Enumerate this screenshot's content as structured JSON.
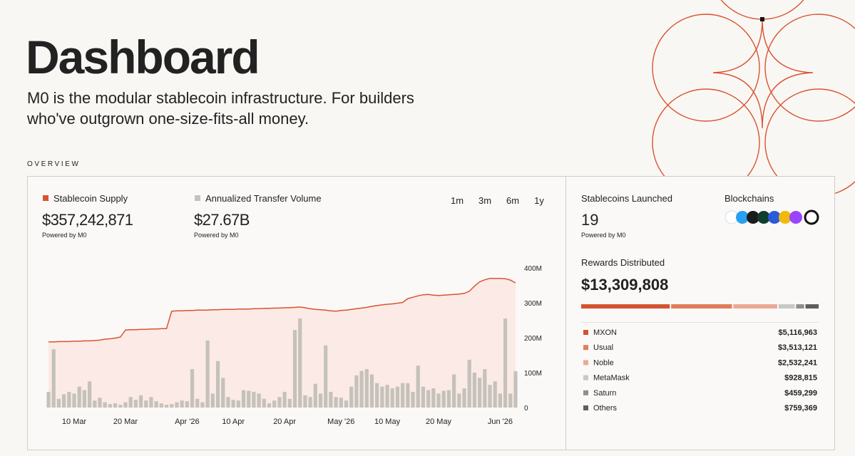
{
  "header": {
    "title": "Dashboard",
    "subtitle_lines": [
      "M0 is the modular stablecoin infrastructure. For builders",
      "who've outgrown one-size-fits-all money."
    ]
  },
  "section_label": "OVERVIEW",
  "metrics": [
    {
      "value": "$357,242,871",
      "note": "Powered by M0"
    },
    {
      "value": "$27.67B",
      "note": "Powered by M0"
    }
  ],
  "ranges": {
    "options": [
      "1m",
      "3m",
      "6m",
      "1y"
    ],
    "active_index": 1,
    "active_color": "#d9532f"
  },
  "right_panel": {
    "launched": {
      "label": "Stablecoins Launched",
      "value": "19",
      "note": "Powered by M0"
    },
    "blockchains": {
      "label": "Blockchains"
    },
    "rewards": {
      "label": "Rewards Distributed",
      "value": "$13,309,808"
    }
  },
  "chart_data": [
    {
      "type": "combo",
      "x": [
        0,
        1,
        2,
        3,
        4,
        5,
        6,
        7,
        8,
        9,
        10,
        11,
        12,
        13,
        14,
        15,
        16,
        17,
        18,
        19,
        20,
        21,
        22,
        23,
        24,
        25,
        26,
        27,
        28,
        29,
        30,
        31,
        32,
        33,
        34,
        35,
        36,
        37,
        38,
        39,
        40,
        41,
        42,
        43,
        44,
        45,
        46,
        47,
        48,
        49,
        50,
        51,
        52,
        53,
        54,
        55,
        56,
        57,
        58,
        59,
        60,
        61,
        62,
        63,
        64,
        65,
        66,
        67,
        68,
        69,
        70,
        71,
        72,
        73,
        74,
        75,
        76,
        77,
        78,
        79,
        80,
        81,
        82,
        83,
        84,
        85,
        86,
        87,
        88,
        89,
        90,
        91
      ],
      "xlim": [
        0,
        91
      ],
      "xticks": [
        {
          "value": 5,
          "label": "10 Mar"
        },
        {
          "value": 15,
          "label": "20 Mar"
        },
        {
          "value": 27,
          "label": "Apr '26"
        },
        {
          "value": 36,
          "label": "10 Apr"
        },
        {
          "value": 46,
          "label": "20 Apr"
        },
        {
          "value": 57,
          "label": "May '26"
        },
        {
          "value": 66,
          "label": "10 May"
        },
        {
          "value": 76,
          "label": "20 May"
        },
        {
          "value": 88,
          "label": "Jun '26"
        }
      ],
      "ylim": [
        0,
        400000000
      ],
      "yticks": [
        {
          "value": 0,
          "label": "0"
        },
        {
          "value": 100000000,
          "label": "100M"
        },
        {
          "value": 200000000,
          "label": "200M"
        },
        {
          "value": 300000000,
          "label": "300M"
        },
        {
          "value": 400000000,
          "label": "400M"
        }
      ],
      "grid": false,
      "series": [
        {
          "name": "Stablecoin Supply",
          "type": "area",
          "color": "#d9532f",
          "fill": "#fbeae5",
          "values": [
            188000000,
            188000000,
            189000000,
            189000000,
            189000000,
            190000000,
            190000000,
            191000000,
            191000000,
            192000000,
            193000000,
            196000000,
            197000000,
            199000000,
            202000000,
            222000000,
            223000000,
            223000000,
            224000000,
            224000000,
            225000000,
            225000000,
            226000000,
            226000000,
            276000000,
            277000000,
            277000000,
            278000000,
            278000000,
            279000000,
            279000000,
            279000000,
            280000000,
            280000000,
            281000000,
            281000000,
            281000000,
            282000000,
            282000000,
            282000000,
            283000000,
            283000000,
            284000000,
            284000000,
            285000000,
            285000000,
            286000000,
            286000000,
            287000000,
            288000000,
            286000000,
            283000000,
            281000000,
            280000000,
            279000000,
            277000000,
            276000000,
            278000000,
            279000000,
            281000000,
            283000000,
            285000000,
            287000000,
            290000000,
            292000000,
            294000000,
            296000000,
            297000000,
            299000000,
            301000000,
            312000000,
            316000000,
            320000000,
            323000000,
            324000000,
            322000000,
            321000000,
            322000000,
            323000000,
            324000000,
            325000000,
            327000000,
            333000000,
            348000000,
            360000000,
            366000000,
            370000000,
            370000000,
            370000000,
            369000000,
            365000000,
            357000000
          ]
        },
        {
          "name": "Annualized Transfer Volume",
          "type": "bar",
          "color": "#c5c1bb",
          "values": [
            45000000,
            167000000,
            25000000,
            38000000,
            45000000,
            40000000,
            60000000,
            50000000,
            75000000,
            20000000,
            28000000,
            15000000,
            10000000,
            12000000,
            8000000,
            15000000,
            30000000,
            22000000,
            35000000,
            20000000,
            30000000,
            18000000,
            12000000,
            8000000,
            10000000,
            15000000,
            20000000,
            18000000,
            110000000,
            25000000,
            15000000,
            192000000,
            40000000,
            133000000,
            85000000,
            30000000,
            22000000,
            20000000,
            50000000,
            48000000,
            45000000,
            40000000,
            25000000,
            12000000,
            20000000,
            30000000,
            45000000,
            25000000,
            222000000,
            255000000,
            35000000,
            30000000,
            68000000,
            40000000,
            178000000,
            45000000,
            30000000,
            28000000,
            20000000,
            60000000,
            92000000,
            105000000,
            110000000,
            95000000,
            70000000,
            60000000,
            65000000,
            55000000,
            60000000,
            70000000,
            70000000,
            45000000,
            120000000,
            60000000,
            50000000,
            55000000,
            40000000,
            48000000,
            50000000,
            95000000,
            40000000,
            55000000,
            137000000,
            100000000,
            85000000,
            110000000,
            65000000,
            75000000,
            40000000,
            255000000,
            40000000,
            104000000
          ]
        }
      ]
    },
    {
      "type": "stacked_bar",
      "categories": [
        "MXON",
        "Usual",
        "Noble",
        "MetaMask",
        "Saturn",
        "Others"
      ],
      "values": [
        5116963,
        3513121,
        2532241,
        928815,
        459299,
        759369
      ],
      "value_labels": [
        "$5,116,963",
        "$3,513,121",
        "$2,532,241",
        "$928,815",
        "$459,299",
        "$759,369"
      ],
      "colors": [
        "#d4532f",
        "#df7d5b",
        "#eaa993",
        "#c8c8c8",
        "#8e8e8e",
        "#5e5e5e"
      ]
    }
  ]
}
